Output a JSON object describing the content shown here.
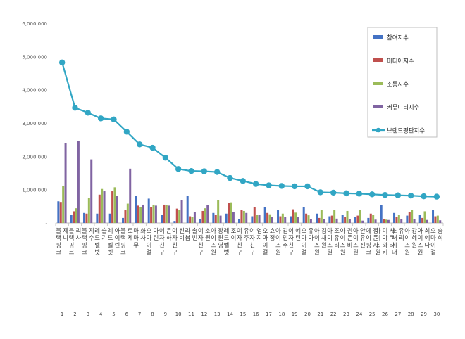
{
  "chart_data": {
    "type": "bar",
    "title": "",
    "xlabel": "",
    "ylabel": "",
    "ylim": [
      0,
      6000000
    ],
    "y_ticks": [
      "-",
      "1,000,000",
      "2,000,000",
      "3,000,000",
      "4,000,000",
      "5,000,000",
      "6,000,000"
    ],
    "grid": false,
    "legend_position": "top-right",
    "categories": [
      "블랙핑크 제니",
      "블랙핑크 리사",
      "블랙핑크 지수",
      "레드벨벳 슬기",
      "레드벨벳 아이린",
      "블랙핑크 로제",
      "마마무 화사",
      "오마이걸 아린",
      "여자친구 은하",
      "여자친구 신비",
      "라붐 솔빈",
      "여자친구 소원",
      "아이즈원 장원영",
      "레드벨벳 조이",
      "여자친구 유주",
      "여자친구 엄지",
      "오마이걸 효정",
      "아이즈원 김민주",
      "여자친구 예린",
      "오마이걸 유아",
      "아이즈원 김채원",
      "아이즈원 조유리",
      "아이즈원 권은비",
      "아이즈원 안유진",
      "에이핑크 정은지",
      "아이즈원 미야와키 사쿠라",
      "소녀시대 유리",
      "아이즈원 강혜원",
      "아이즈원 최예나",
      "오마이걸 승희"
    ],
    "rank_labels": [
      "1",
      "2",
      "3",
      "4",
      "5",
      "6",
      "7",
      "8",
      "9",
      "10",
      "11",
      "12",
      "13",
      "14",
      "15",
      "16",
      "17",
      "18",
      "19",
      "20",
      "21",
      "22",
      "23",
      "24",
      "25",
      "26",
      "27",
      "28",
      "29",
      "30"
    ],
    "series": [
      {
        "name": "참여지수",
        "type": "bar",
        "color": "#4472c4",
        "values": [
          650000,
          250000,
          300000,
          280000,
          280000,
          150000,
          820000,
          730000,
          250000,
          60000,
          820000,
          120000,
          300000,
          280000,
          120000,
          200000,
          480000,
          380000,
          200000,
          470000,
          280000,
          200000,
          250000,
          170000,
          150000,
          540000,
          300000,
          220000,
          250000,
          380000
        ]
      },
      {
        "name": "미디어지수",
        "type": "bar",
        "color": "#c0504d",
        "values": [
          630000,
          350000,
          280000,
          850000,
          950000,
          380000,
          520000,
          480000,
          550000,
          430000,
          200000,
          360000,
          250000,
          600000,
          380000,
          480000,
          300000,
          200000,
          410000,
          280000,
          150000,
          220000,
          180000,
          220000,
          280000,
          120000,
          180000,
          320000,
          150000,
          200000
        ]
      },
      {
        "name": "소통지수",
        "type": "bar",
        "color": "#9bbb59",
        "values": [
          1120000,
          440000,
          750000,
          1020000,
          1070000,
          580000,
          480000,
          550000,
          530000,
          400000,
          180000,
          440000,
          690000,
          620000,
          360000,
          240000,
          260000,
          280000,
          310000,
          230000,
          380000,
          380000,
          360000,
          390000,
          240000,
          100000,
          240000,
          400000,
          350000,
          220000
        ]
      },
      {
        "name": "커뮤니티지수",
        "type": "bar",
        "color": "#8064a2",
        "values": [
          2400000,
          2460000,
          1910000,
          950000,
          820000,
          1630000,
          550000,
          520000,
          520000,
          690000,
          320000,
          530000,
          220000,
          330000,
          300000,
          250000,
          170000,
          170000,
          190000,
          120000,
          120000,
          130000,
          110000,
          70000,
          100000,
          90000,
          120000,
          110000,
          90000,
          80000
        ]
      },
      {
        "name": "브랜드평판지수",
        "type": "line",
        "color": "#31a6c4",
        "values": [
          4820000,
          3460000,
          3310000,
          3140000,
          3110000,
          2740000,
          2360000,
          2260000,
          1960000,
          1620000,
          1560000,
          1550000,
          1530000,
          1350000,
          1260000,
          1170000,
          1130000,
          1110000,
          1100000,
          1100000,
          920000,
          910000,
          890000,
          880000,
          860000,
          840000,
          830000,
          820000,
          800000,
          790000
        ]
      }
    ]
  }
}
